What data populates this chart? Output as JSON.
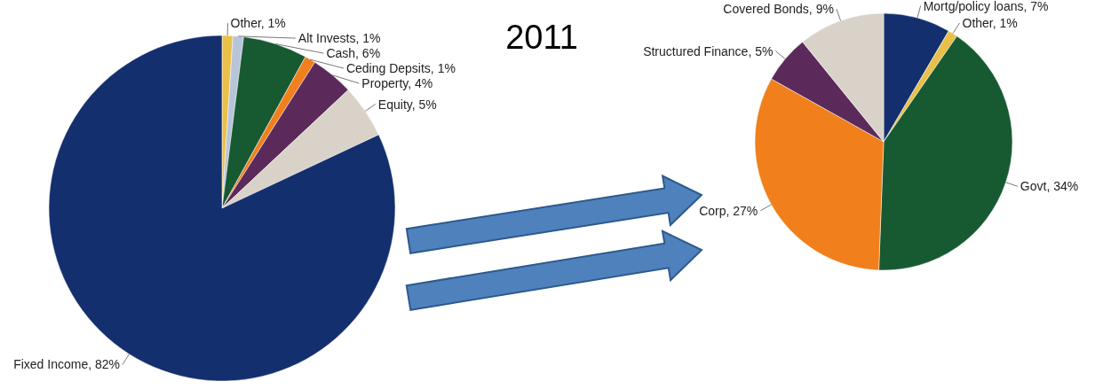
{
  "chart_data": [
    {
      "type": "pie",
      "title": "2011",
      "categories": [
        "Other",
        "Alt Invests",
        "Cash",
        "Ceding Depsits",
        "Property",
        "Equity",
        "Fixed Income"
      ],
      "values": [
        1,
        1,
        6,
        1,
        4,
        5,
        82
      ],
      "value_labels": [
        "1%",
        "1%",
        "6%",
        "1%",
        "4%",
        "5%",
        "82%"
      ],
      "colors": [
        "#e8c04a",
        "#b8c4d8",
        "#175a32",
        "#f07f1c",
        "#5b2a5a",
        "#d9d2c8",
        "#142f6e"
      ]
    },
    {
      "type": "pie",
      "categories": [
        "Mortg/policy loans",
        "Other",
        "Govt",
        "Corp",
        "Structured Finance",
        "Covered Bonds"
      ],
      "values": [
        7,
        1,
        34,
        27,
        5,
        9
      ],
      "value_labels": [
        "7%",
        "1%",
        "34%",
        "27%",
        "5%",
        "9%"
      ],
      "colors": [
        "#142f6e",
        "#e8c04a",
        "#175a32",
        "#f07f1c",
        "#5b2a5a",
        "#d9d2c8"
      ]
    }
  ]
}
